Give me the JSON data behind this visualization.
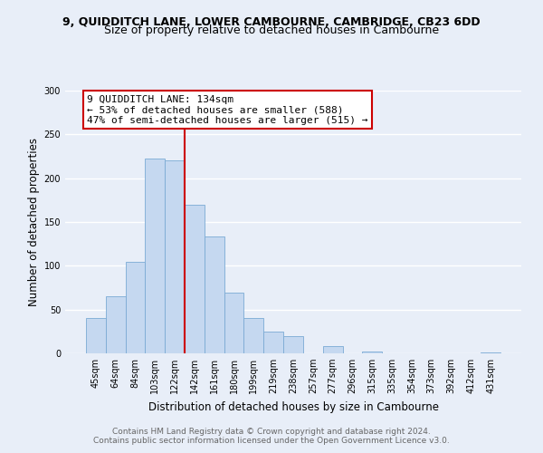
{
  "title_line1": "9, QUIDDITCH LANE, LOWER CAMBOURNE, CAMBRIDGE, CB23 6DD",
  "title_line2": "Size of property relative to detached houses in Cambourne",
  "xlabel": "Distribution of detached houses by size in Cambourne",
  "ylabel": "Number of detached properties",
  "footer_line1": "Contains HM Land Registry data © Crown copyright and database right 2024.",
  "footer_line2": "Contains public sector information licensed under the Open Government Licence v3.0.",
  "bin_labels": [
    "45sqm",
    "64sqm",
    "84sqm",
    "103sqm",
    "122sqm",
    "142sqm",
    "161sqm",
    "180sqm",
    "199sqm",
    "219sqm",
    "238sqm",
    "257sqm",
    "277sqm",
    "296sqm",
    "315sqm",
    "335sqm",
    "354sqm",
    "373sqm",
    "392sqm",
    "412sqm",
    "431sqm"
  ],
  "bar_values": [
    40,
    65,
    105,
    222,
    220,
    170,
    133,
    69,
    40,
    25,
    20,
    0,
    8,
    0,
    2,
    0,
    0,
    0,
    0,
    0,
    1
  ],
  "bar_color": "#c5d8f0",
  "bar_edge_color": "#7baad4",
  "vline_x_index": 4,
  "vline_color": "#cc0000",
  "annotation_text": "9 QUIDDITCH LANE: 134sqm\n← 53% of detached houses are smaller (588)\n47% of semi-detached houses are larger (515) →",
  "annotation_box_color": "#ffffff",
  "annotation_box_edge": "#cc0000",
  "ylim": [
    0,
    300
  ],
  "yticks": [
    0,
    50,
    100,
    150,
    200,
    250,
    300
  ],
  "background_color": "#e8eef8",
  "plot_background": "#e8eef8",
  "grid_color": "#ffffff",
  "title_fontsize": 9,
  "subtitle_fontsize": 9,
  "axis_label_fontsize": 8.5,
  "tick_fontsize": 7,
  "footer_fontsize": 6.5,
  "annotation_fontsize": 8
}
